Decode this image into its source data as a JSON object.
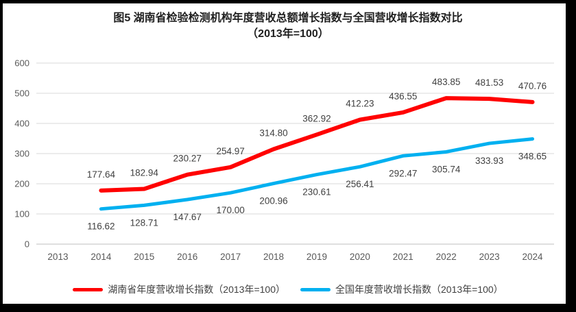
{
  "title": {
    "line1": "图5 湖南省检验检测机构年度营收总额增长指数与全国营收增长指数对比",
    "line2": "（2013年=100）"
  },
  "chart_data": {
    "type": "line",
    "categories": [
      "2013",
      "2014",
      "2015",
      "2016",
      "2017",
      "2018",
      "2019",
      "2020",
      "2021",
      "2022",
      "2023",
      "2024"
    ],
    "series": [
      {
        "name": "湖南省年度营收增长指数（2013年=100）",
        "color": "#FF0000",
        "values": [
          null,
          177.64,
          182.94,
          230.27,
          254.97,
          314.8,
          362.92,
          412.23,
          436.55,
          483.85,
          481.53,
          470.76
        ]
      },
      {
        "name": "全国年度营收增长指数（2013年=100）",
        "color": "#00B0F0",
        "values": [
          null,
          116.62,
          128.71,
          147.67,
          170.0,
          200.96,
          230.61,
          256.41,
          292.47,
          305.74,
          333.93,
          348.65
        ]
      }
    ],
    "ylim": [
      0,
      600
    ],
    "yticks": [
      0,
      100,
      200,
      300,
      400,
      500,
      600
    ],
    "grid": true,
    "legend_position": "bottom",
    "colors": {
      "gridline": "#D9D9D9",
      "axis_line": "#BFBFBF",
      "tick_label": "#595959",
      "data_label": "#404040",
      "frame_border": "#000000",
      "background": "#FFFFFF"
    }
  }
}
